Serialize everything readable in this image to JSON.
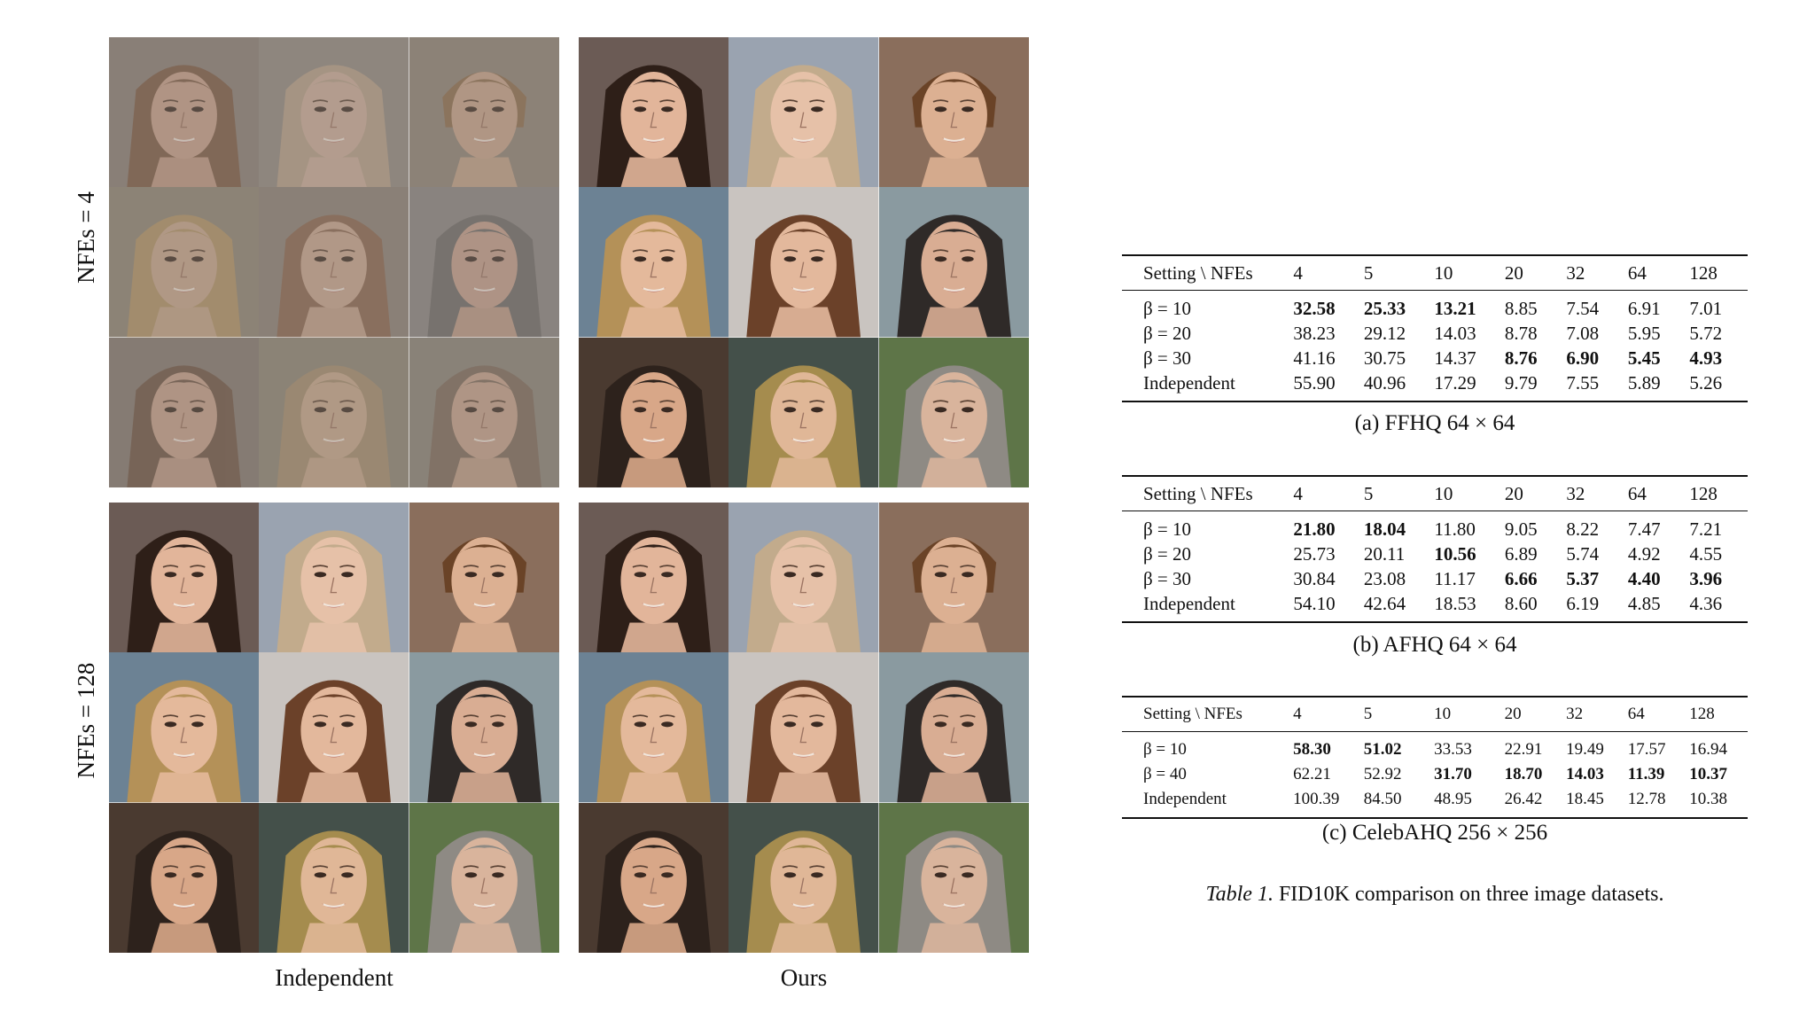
{
  "figure": {
    "row_labels": [
      "NFEs = 4",
      "NFEs = 128"
    ],
    "column_labels": [
      "Independent",
      "Ours"
    ],
    "faces": [
      {
        "skin": "#caa28d",
        "hair": "#7b5a44",
        "bg": "#8a7f78"
      },
      {
        "skin": "#cdae9c",
        "hair": "#b6a08a",
        "bg": "#908880"
      },
      {
        "skin": "#c8a58d",
        "hair": "#8c6c4e",
        "bg": "#8e8378"
      },
      {
        "skin": "#c9a78f",
        "hair": "#b19468",
        "bg": "#8d8577"
      },
      {
        "skin": "#cba892",
        "hair": "#8a6650",
        "bg": "#8b8178"
      },
      {
        "skin": "#c7a08b",
        "hair": "#6e6a66",
        "bg": "#898482"
      },
      {
        "skin": "#c9a48f",
        "hair": "#6f5646",
        "bg": "#857a72"
      },
      {
        "skin": "#caa98f",
        "hair": "#a58e70",
        "bg": "#8c8476"
      },
      {
        "skin": "#c8a48e",
        "hair": "#7c6a5c",
        "bg": "#8a8379"
      },
      {
        "skin": "#e2b59a",
        "hair": "#2e1f18",
        "bg": "#6b5b55"
      },
      {
        "skin": "#e6c1a8",
        "hair": "#c2ab8c",
        "bg": "#9aa3b0"
      },
      {
        "skin": "#dcb092",
        "hair": "#6a4327",
        "bg": "#8a6e5c"
      },
      {
        "skin": "#e4b99b",
        "hair": "#b49158",
        "bg": "#6c8294"
      },
      {
        "skin": "#e3b89c",
        "hair": "#6b4129",
        "bg": "#c9c4c0"
      },
      {
        "skin": "#d9ad93",
        "hair": "#2f2a28",
        "bg": "#8a9aa0"
      },
      {
        "skin": "#d8a788",
        "hair": "#2d221c",
        "bg": "#4a3a30"
      },
      {
        "skin": "#e0b797",
        "hair": "#a58c4e",
        "bg": "#44504a"
      },
      {
        "skin": "#d9b49c",
        "hair": "#8e8a84",
        "bg": "#5e7548"
      }
    ]
  },
  "tables": [
    {
      "header": [
        "Setting \\ NFEs",
        "4",
        "5",
        "10",
        "20",
        "32",
        "64",
        "128"
      ],
      "rows": [
        {
          "label": "β = 10",
          "values": [
            "32.58",
            "25.33",
            "13.21",
            "8.85",
            "7.54",
            "6.91",
            "7.01"
          ],
          "bold": [
            true,
            true,
            true,
            false,
            false,
            false,
            false
          ]
        },
        {
          "label": "β = 20",
          "values": [
            "38.23",
            "29.12",
            "14.03",
            "8.78",
            "7.08",
            "5.95",
            "5.72"
          ],
          "bold": [
            false,
            false,
            false,
            false,
            false,
            false,
            false
          ]
        },
        {
          "label": "β = 30",
          "values": [
            "41.16",
            "30.75",
            "14.37",
            "8.76",
            "6.90",
            "5.45",
            "4.93"
          ],
          "bold": [
            false,
            false,
            false,
            true,
            true,
            true,
            true
          ]
        },
        {
          "label": "Independent",
          "values": [
            "55.90",
            "40.96",
            "17.29",
            "9.79",
            "7.55",
            "5.89",
            "5.26"
          ],
          "bold": [
            false,
            false,
            false,
            false,
            false,
            false,
            false
          ]
        }
      ],
      "caption": "(a) FFHQ 64 × 64"
    },
    {
      "header": [
        "Setting \\ NFEs",
        "4",
        "5",
        "10",
        "20",
        "32",
        "64",
        "128"
      ],
      "rows": [
        {
          "label": "β = 10",
          "values": [
            "21.80",
            "18.04",
            "11.80",
            "9.05",
            "8.22",
            "7.47",
            "7.21"
          ],
          "bold": [
            true,
            true,
            false,
            false,
            false,
            false,
            false
          ]
        },
        {
          "label": "β = 20",
          "values": [
            "25.73",
            "20.11",
            "10.56",
            "6.89",
            "5.74",
            "4.92",
            "4.55"
          ],
          "bold": [
            false,
            false,
            true,
            false,
            false,
            false,
            false
          ]
        },
        {
          "label": "β = 30",
          "values": [
            "30.84",
            "23.08",
            "11.17",
            "6.66",
            "5.37",
            "4.40",
            "3.96"
          ],
          "bold": [
            false,
            false,
            false,
            true,
            true,
            true,
            true
          ]
        },
        {
          "label": "Independent",
          "values": [
            "54.10",
            "42.64",
            "18.53",
            "8.60",
            "6.19",
            "4.85",
            "4.36"
          ],
          "bold": [
            false,
            false,
            false,
            false,
            false,
            false,
            false
          ]
        }
      ],
      "caption": "(b) AFHQ 64 × 64"
    },
    {
      "header": [
        "Setting \\ NFEs",
        "4",
        "5",
        "10",
        "20",
        "32",
        "64",
        "128"
      ],
      "rows": [
        {
          "label": "β = 10",
          "values": [
            "58.30",
            "51.02",
            "33.53",
            "22.91",
            "19.49",
            "17.57",
            "16.94"
          ],
          "bold": [
            true,
            true,
            false,
            false,
            false,
            false,
            false
          ]
        },
        {
          "label": "β = 40",
          "values": [
            "62.21",
            "52.92",
            "31.70",
            "18.70",
            "14.03",
            "11.39",
            "10.37"
          ],
          "bold": [
            false,
            false,
            true,
            true,
            true,
            true,
            true
          ]
        },
        {
          "label": "Independent",
          "values": [
            "100.39",
            "84.50",
            "48.95",
            "26.42",
            "18.45",
            "12.78",
            "10.38"
          ],
          "bold": [
            false,
            false,
            false,
            false,
            false,
            false,
            false
          ]
        }
      ],
      "caption": "(c) CelebAHQ 256 × 256"
    }
  ],
  "table_caption": {
    "label": "Table 1.",
    "text": "FID10K comparison on three image datasets."
  }
}
